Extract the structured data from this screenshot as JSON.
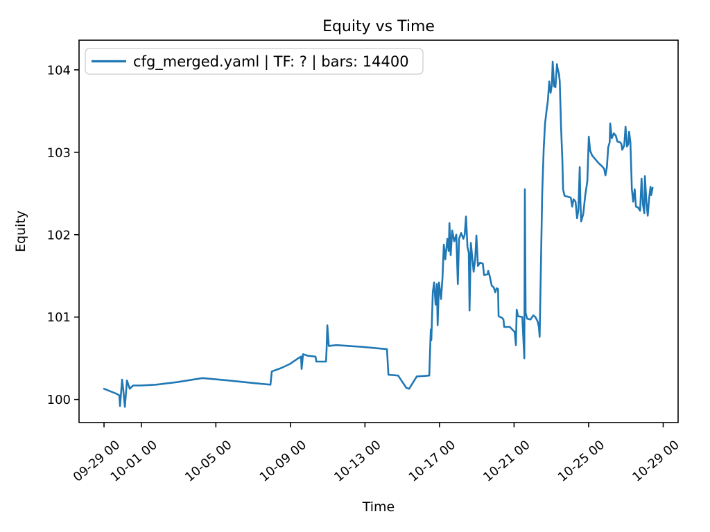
{
  "figure": {
    "background": "#ffffff",
    "spine_color": "#000000",
    "text_color": "#000000",
    "legend": {
      "border_color": "#cccccc",
      "face_color": "rgba(255,255,255,0.8)"
    }
  },
  "chart_data": {
    "type": "line",
    "title": "Equity vs Time",
    "xlabel": "Time",
    "ylabel": "Equity",
    "grid": false,
    "legend_position": "upper left",
    "legend_entries": [
      "cfg_merged.yaml | TF: ? | bars: 14400"
    ],
    "x_unit": "days since 09-29 00:00",
    "xlim": [
      -1.34,
      30.8
    ],
    "ylim": [
      99.72,
      104.36
    ],
    "x_ticks": [
      {
        "t": 0,
        "label": "09-29 00"
      },
      {
        "t": 2,
        "label": "10-01 00"
      },
      {
        "t": 6,
        "label": "10-05 00"
      },
      {
        "t": 10,
        "label": "10-09 00"
      },
      {
        "t": 14,
        "label": "10-13 00"
      },
      {
        "t": 18,
        "label": "10-17 00"
      },
      {
        "t": 22,
        "label": "10-21 00"
      },
      {
        "t": 26,
        "label": "10-25 00"
      },
      {
        "t": 30,
        "label": "10-29 00"
      }
    ],
    "y_ticks": [
      100,
      101,
      102,
      103,
      104
    ],
    "series": [
      {
        "name": "cfg_merged.yaml | TF: ? | bars: 14400",
        "color": "#1f77b4",
        "points": [
          [
            0,
            100.13
          ],
          [
            0.67,
            100.07
          ],
          [
            0.82,
            100.05
          ],
          [
            0.86,
            99.92
          ],
          [
            0.97,
            100.24
          ],
          [
            1.04,
            100.1
          ],
          [
            1.12,
            99.91
          ],
          [
            1.23,
            100.23
          ],
          [
            1.38,
            100.13
          ],
          [
            1.56,
            100.17
          ],
          [
            1.97,
            100.17
          ],
          [
            2.79,
            100.18
          ],
          [
            3.91,
            100.21
          ],
          [
            5.28,
            100.26
          ],
          [
            6.7,
            100.23
          ],
          [
            8,
            100.2
          ],
          [
            8.93,
            100.18
          ],
          [
            9,
            100.34
          ],
          [
            9.49,
            100.38
          ],
          [
            9.97,
            100.43
          ],
          [
            10.42,
            100.5
          ],
          [
            10.57,
            100.52
          ],
          [
            10.6,
            100.37
          ],
          [
            10.68,
            100.55
          ],
          [
            10.94,
            100.53
          ],
          [
            11.35,
            100.52
          ],
          [
            11.39,
            100.46
          ],
          [
            11.91,
            100.46
          ],
          [
            11.94,
            100.6
          ],
          [
            11.98,
            100.9
          ],
          [
            12.06,
            100.65
          ],
          [
            12.47,
            100.66
          ],
          [
            13.77,
            100.64
          ],
          [
            15.18,
            100.61
          ],
          [
            15.26,
            100.3
          ],
          [
            15.78,
            100.29
          ],
          [
            16.22,
            100.14
          ],
          [
            16.37,
            100.13
          ],
          [
            16.78,
            100.28
          ],
          [
            17.45,
            100.29
          ],
          [
            17.53,
            100.85
          ],
          [
            17.56,
            100.72
          ],
          [
            17.64,
            101.3
          ],
          [
            17.71,
            101.42
          ],
          [
            17.79,
            101.15
          ],
          [
            17.86,
            101.4
          ],
          [
            17.9,
            100.9
          ],
          [
            17.97,
            101.42
          ],
          [
            18.08,
            101.22
          ],
          [
            18.16,
            101.48
          ],
          [
            18.23,
            101.88
          ],
          [
            18.31,
            101.7
          ],
          [
            18.42,
            101.95
          ],
          [
            18.49,
            101.8
          ],
          [
            18.53,
            102.14
          ],
          [
            18.6,
            101.75
          ],
          [
            18.68,
            102.05
          ],
          [
            18.79,
            101.92
          ],
          [
            18.9,
            102
          ],
          [
            18.98,
            101.4
          ],
          [
            19.05,
            101.95
          ],
          [
            19.16,
            102.02
          ],
          [
            19.28,
            101.95
          ],
          [
            19.35,
            102
          ],
          [
            19.42,
            102.22
          ],
          [
            19.5,
            101.85
          ],
          [
            19.57,
            101.78
          ],
          [
            19.61,
            101.08
          ],
          [
            19.68,
            101.9
          ],
          [
            19.76,
            101.72
          ],
          [
            19.83,
            101.55
          ],
          [
            19.91,
            101.7
          ],
          [
            19.98,
            101.99
          ],
          [
            20.06,
            101.62
          ],
          [
            20.17,
            101.66
          ],
          [
            20.32,
            101.65
          ],
          [
            20.39,
            101.51
          ],
          [
            20.58,
            101.52
          ],
          [
            20.61,
            101.56
          ],
          [
            20.69,
            101.5
          ],
          [
            20.8,
            101.38
          ],
          [
            20.91,
            101.36
          ],
          [
            20.99,
            101.3
          ],
          [
            21.06,
            101.35
          ],
          [
            21.14,
            101.34
          ],
          [
            21.17,
            101.01
          ],
          [
            21.36,
            100.99
          ],
          [
            21.43,
            100.97
          ],
          [
            21.47,
            100.88
          ],
          [
            21.77,
            100.88
          ],
          [
            22.03,
            100.82
          ],
          [
            22.1,
            100.66
          ],
          [
            22.14,
            101.09
          ],
          [
            22.21,
            101.01
          ],
          [
            22.44,
            101
          ],
          [
            22.55,
            100.5
          ],
          [
            22.58,
            102.55
          ],
          [
            22.62,
            101.05
          ],
          [
            22.7,
            100.98
          ],
          [
            22.88,
            100.97
          ],
          [
            23.03,
            101.02
          ],
          [
            23.14,
            101
          ],
          [
            23.26,
            100.95
          ],
          [
            23.33,
            100.88
          ],
          [
            23.37,
            100.76
          ],
          [
            23.44,
            101.6
          ],
          [
            23.51,
            102.5
          ],
          [
            23.59,
            103.05
          ],
          [
            23.66,
            103.35
          ],
          [
            23.74,
            103.5
          ],
          [
            23.81,
            103.62
          ],
          [
            23.89,
            103.86
          ],
          [
            23.96,
            103.72
          ],
          [
            24.03,
            103.82
          ],
          [
            24.07,
            104.1
          ],
          [
            24.11,
            103.95
          ],
          [
            24.15,
            103.8
          ],
          [
            24.22,
            103.79
          ],
          [
            24.3,
            104.07
          ],
          [
            24.33,
            104.02
          ],
          [
            24.41,
            103.95
          ],
          [
            24.45,
            103.86
          ],
          [
            24.52,
            103.3
          ],
          [
            24.59,
            102.9
          ],
          [
            24.63,
            102.55
          ],
          [
            24.71,
            102.47
          ],
          [
            24.89,
            102.46
          ],
          [
            25.04,
            102.45
          ],
          [
            25.12,
            102.34
          ],
          [
            25.19,
            102.43
          ],
          [
            25.3,
            102.4
          ],
          [
            25.38,
            102.2
          ],
          [
            25.45,
            102.3
          ],
          [
            25.52,
            102.82
          ],
          [
            25.56,
            102.4
          ],
          [
            25.6,
            102.16
          ],
          [
            25.71,
            102.25
          ],
          [
            25.82,
            102.48
          ],
          [
            25.93,
            102.65
          ],
          [
            26.01,
            103.19
          ],
          [
            26.08,
            103.02
          ],
          [
            26.19,
            102.96
          ],
          [
            26.34,
            102.92
          ],
          [
            26.53,
            102.87
          ],
          [
            26.72,
            102.83
          ],
          [
            26.83,
            102.8
          ],
          [
            26.9,
            102.72
          ],
          [
            26.98,
            102.82
          ],
          [
            27.05,
            103.06
          ],
          [
            27.13,
            103.12
          ],
          [
            27.16,
            103.35
          ],
          [
            27.24,
            103.17
          ],
          [
            27.35,
            103.23
          ],
          [
            27.46,
            103.2
          ],
          [
            27.54,
            103.13
          ],
          [
            27.69,
            103.12
          ],
          [
            27.76,
            103.1
          ],
          [
            27.8,
            103.03
          ],
          [
            27.91,
            103.08
          ],
          [
            27.98,
            103.31
          ],
          [
            28.06,
            103.07
          ],
          [
            28.13,
            103.1
          ],
          [
            28.17,
            103.25
          ],
          [
            28.24,
            103.12
          ],
          [
            28.32,
            102.55
          ],
          [
            28.39,
            102.4
          ],
          [
            28.47,
            102.55
          ],
          [
            28.54,
            102.34
          ],
          [
            28.65,
            102.33
          ],
          [
            28.76,
            102.29
          ],
          [
            28.84,
            102.68
          ],
          [
            28.91,
            102.37
          ],
          [
            28.99,
            102.26
          ],
          [
            29.02,
            102.71
          ],
          [
            29.1,
            102.4
          ],
          [
            29.17,
            102.23
          ],
          [
            29.25,
            102.45
          ],
          [
            29.32,
            102.58
          ],
          [
            29.36,
            102.48
          ],
          [
            29.43,
            102.57
          ]
        ]
      }
    ]
  }
}
